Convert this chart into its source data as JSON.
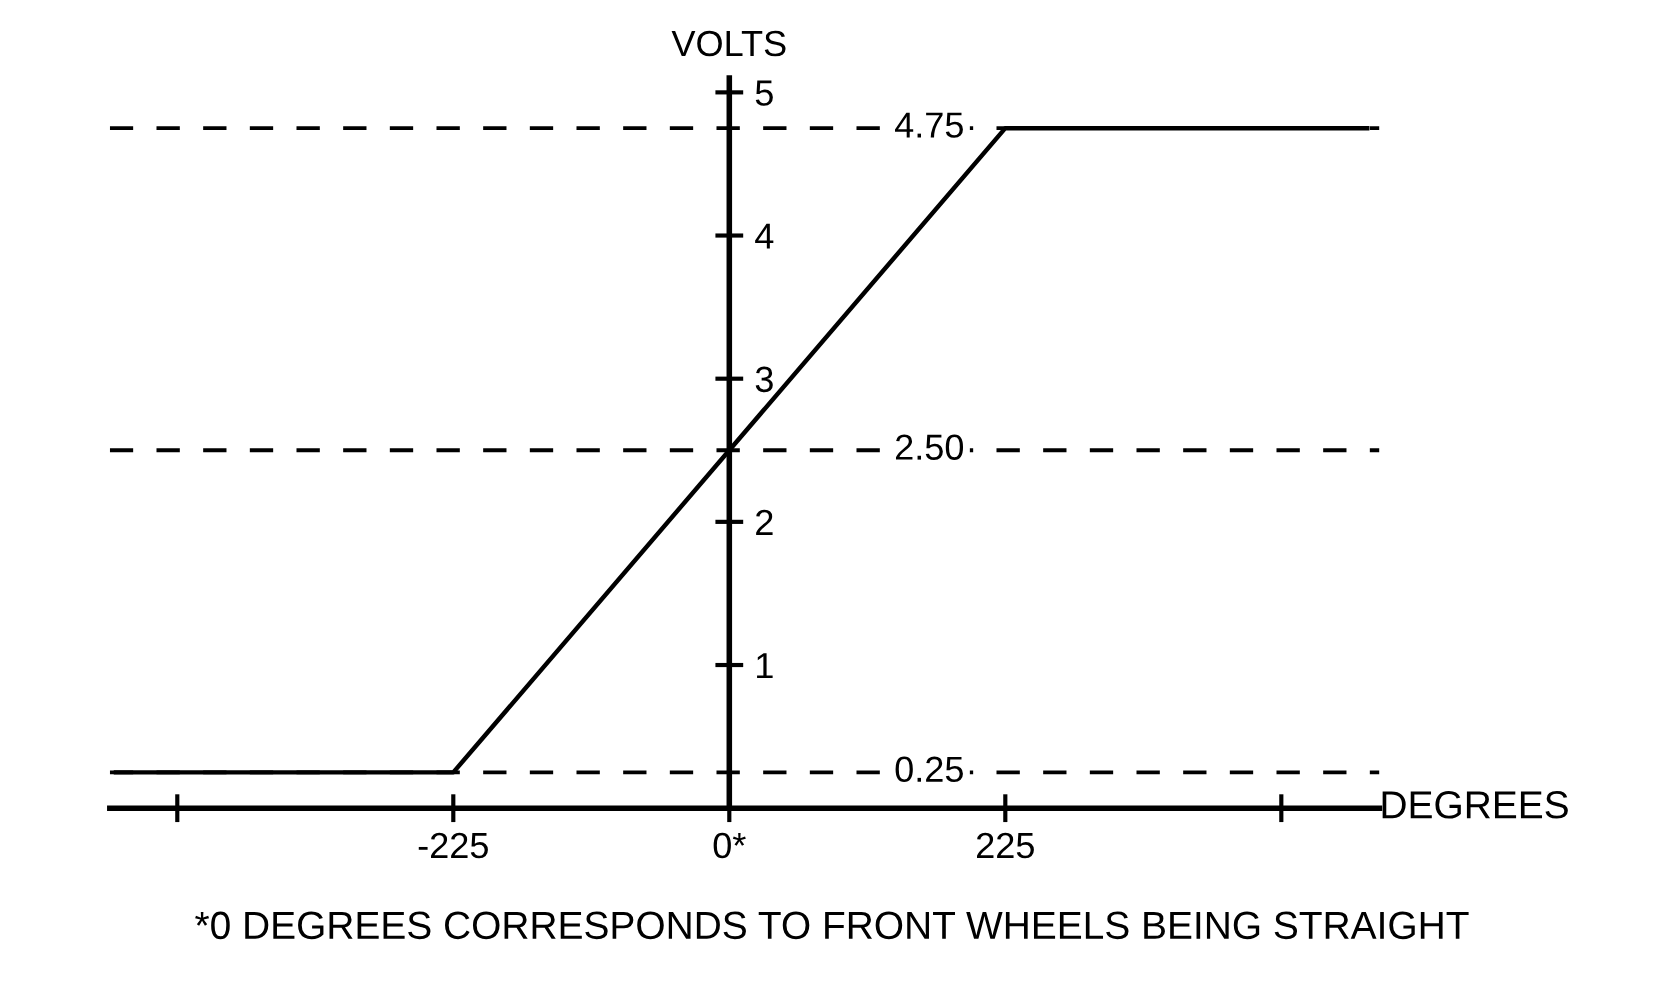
{
  "chart_data": {
    "type": "line",
    "xlabel": "DEGREES",
    "ylabel": "VOLTS",
    "x": [
      -500,
      -225,
      225,
      520
    ],
    "series": [
      {
        "color": "#000000",
        "values": [
          0.25,
          0.25,
          4.75,
          4.75
        ]
      }
    ],
    "xlim": [
      -505,
      530
    ],
    "ylim": [
      0,
      5.1
    ],
    "xticks": [
      {
        "value": -450,
        "label": null
      },
      -225,
      {
        "value": 0,
        "label": "0*"
      },
      225,
      {
        "value": 450,
        "label": null
      }
    ],
    "yticks": [
      1,
      2,
      3,
      4,
      5
    ],
    "ref_lines": [
      {
        "axis": "y",
        "value": 0.25,
        "label": "0.25",
        "color": "#000000",
        "line_style": "dashed"
      },
      {
        "axis": "y",
        "value": 2.5,
        "label": "2.50",
        "color": "#000000",
        "line_style": "dashed"
      },
      {
        "axis": "y",
        "value": 4.75,
        "label": "4.75",
        "color": "#000000",
        "line_style": "dashed"
      }
    ],
    "annotations": [
      "*0 DEGREES CORRESPONDS TO FRONT WHEELS BEING STRAIGHT"
    ],
    "grid": false,
    "legend": false,
    "marker": "none",
    "line_style": "solid"
  }
}
